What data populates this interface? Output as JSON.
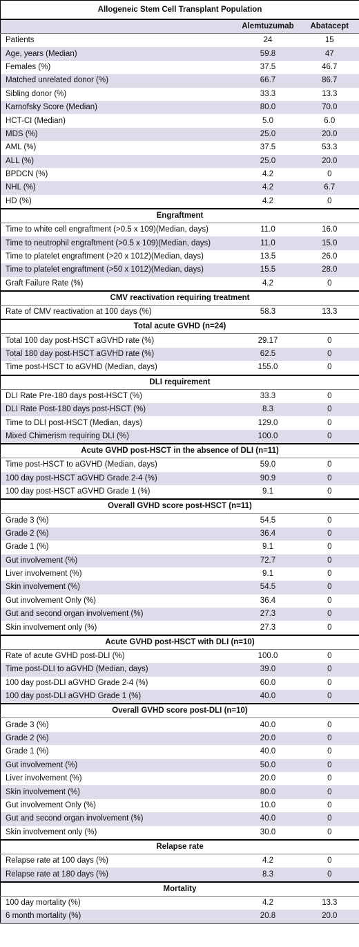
{
  "title": "Allogeneic Stem Cell Transplant Population",
  "columns": [
    "",
    "Alemtuzumab",
    "Abatacept"
  ],
  "sections": [
    {
      "heading": "",
      "rows": [
        [
          "Patients",
          "24",
          "15"
        ],
        [
          "Age, years (Median)",
          "59.8",
          "47"
        ],
        [
          "Females (%)",
          "37.5",
          "46.7"
        ],
        [
          "Matched unrelated donor (%)",
          "66.7",
          "86.7"
        ],
        [
          "Sibling donor (%)",
          "33.3",
          "13.3"
        ],
        [
          "Karnofsky Score (Median)",
          "80.0",
          "70.0"
        ],
        [
          "HCT-CI (Median)",
          "5.0",
          "6.0"
        ],
        [
          "MDS (%)",
          "25.0",
          "20.0"
        ],
        [
          "AML (%)",
          "37.5",
          "53.3"
        ],
        [
          "ALL (%)",
          "25.0",
          "20.0"
        ],
        [
          "BPDCN (%)",
          "4.2",
          "0"
        ],
        [
          "NHL (%)",
          "4.2",
          "6.7"
        ],
        [
          "HD (%)",
          "4.2",
          "0"
        ]
      ]
    },
    {
      "heading": "Engraftment",
      "rows": [
        [
          "Time to white cell engraftment (>0.5 x 109)(Median, days)",
          "11.0",
          "16.0"
        ],
        [
          "Time to neutrophil engraftment (>0.5 x 109)(Median, days)",
          "11.0",
          "15.0"
        ],
        [
          "Time to platelet engraftment (>20 x 1012)(Median, days)",
          "13.5",
          "26.0"
        ],
        [
          "Time to platelet engraftment (>50 x 1012)(Median, days)",
          "15.5",
          "28.0"
        ],
        [
          "Graft Failure Rate (%)",
          "4.2",
          "0"
        ]
      ]
    },
    {
      "heading": "CMV reactivation requiring treatment",
      "rows": [
        [
          "Rate of CMV reactivation at 100 days (%)",
          "58.3",
          "13.3"
        ]
      ]
    },
    {
      "heading": "Total acute GVHD (n=24)",
      "rows": [
        [
          "Total 100 day post-HSCT aGVHD rate (%)",
          "29.17",
          "0"
        ],
        [
          "Total 180 day post-HSCT aGVHD rate (%)",
          "62.5",
          "0"
        ],
        [
          "Time post-HSCT to aGVHD (Median, days)",
          "155.0",
          "0"
        ]
      ]
    },
    {
      "heading": "DLI requirement",
      "rows": [
        [
          "DLI Rate Pre-180 days post-HSCT (%)",
          "33.3",
          "0"
        ],
        [
          "DLI Rate Post-180 days post-HSCT (%)",
          "8.3",
          "0"
        ],
        [
          "Time to DLI post-HSCT (Median, days)",
          "129.0",
          "0"
        ],
        [
          "Mixed Chimerism requiring DLI (%)",
          "100.0",
          "0"
        ]
      ]
    },
    {
      "heading": "Acute GVHD post-HSCT in the absence of DLI (n=11)",
      "rows": [
        [
          "Time post-HSCT to aGVHD (Median, days)",
          "59.0",
          "0"
        ],
        [
          "100 day post-HSCT aGVHD Grade 2-4 (%)",
          "90.9",
          "0"
        ],
        [
          "100 day post-HSCT aGVHD Grade 1 (%)",
          "9.1",
          "0"
        ]
      ]
    },
    {
      "heading": "Overall GVHD score post-HSCT (n=11)",
      "rows": [
        [
          "Grade 3 (%)",
          "54.5",
          "0"
        ],
        [
          "Grade 2 (%)",
          "36.4",
          "0"
        ],
        [
          "Grade 1 (%)",
          "9.1",
          "0"
        ],
        [
          "Gut involvement (%)",
          "72.7",
          "0"
        ],
        [
          "Liver involvement (%)",
          "9.1",
          "0"
        ],
        [
          "Skin involvement (%)",
          "54.5",
          "0"
        ],
        [
          "Gut involvement Only (%)",
          "36.4",
          "0"
        ],
        [
          "Gut and second organ involvement (%)",
          "27.3",
          "0"
        ],
        [
          "Skin involvement only (%)",
          "27.3",
          "0"
        ]
      ]
    },
    {
      "heading": "Acute GVHD post-HSCT with DLI (n=10)",
      "rows": [
        [
          "Rate of acute GVHD post-DLI (%)",
          "100.0",
          "0"
        ],
        [
          "Time post-DLI to aGVHD (Median, days)",
          "39.0",
          "0"
        ],
        [
          "100 day post-DLI aGVHD Grade 2-4 (%)",
          "60.0",
          "0"
        ],
        [
          "100 day post-DLI aGVHD Grade 1 (%)",
          "40.0",
          "0"
        ]
      ]
    },
    {
      "heading": "Overall GVHD score post-DLI (n=10)",
      "rows": [
        [
          "Grade 3 (%)",
          "40.0",
          "0"
        ],
        [
          "Grade 2 (%)",
          "20.0",
          "0"
        ],
        [
          "Grade 1 (%)",
          "40.0",
          "0"
        ],
        [
          "Gut involvement (%)",
          "50.0",
          "0"
        ],
        [
          "Liver involvement (%)",
          "20.0",
          "0"
        ],
        [
          "Skin involvement (%)",
          "80.0",
          "0"
        ],
        [
          "Gut involvement Only (%)",
          "10.0",
          "0"
        ],
        [
          "Gut and second organ involvement (%)",
          "40.0",
          "0"
        ],
        [
          "Skin involvement only (%)",
          "30.0",
          "0"
        ]
      ]
    },
    {
      "heading": "Relapse rate",
      "rows": [
        [
          "Relapse rate at 100 days (%)",
          "4.2",
          "0"
        ],
        [
          "Relapse rate at 180 days (%)",
          "8.3",
          "0"
        ]
      ]
    },
    {
      "heading": "Mortality",
      "rows": [
        [
          "100 day mortality (%)",
          "4.2",
          "13.3"
        ],
        [
          "6 month mortality (%)",
          "20.8",
          "20.0"
        ]
      ]
    }
  ]
}
